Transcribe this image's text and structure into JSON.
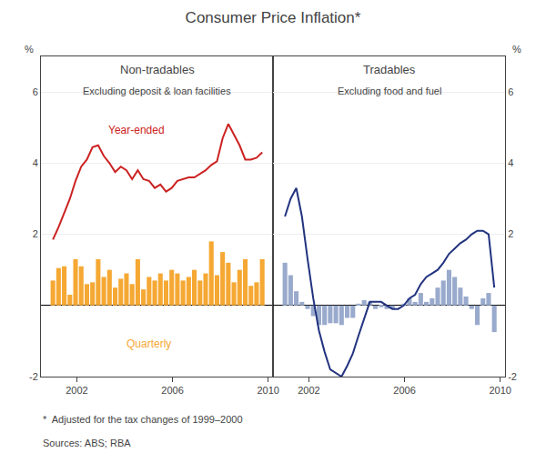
{
  "title": "Consumer Price Inflation*",
  "notes": [
    "*  Adjusted for the tax changes of 1999–2000",
    "Sources: ABS; RBA"
  ],
  "chart_data": [
    {
      "type": "bar",
      "title": "Non-tradables",
      "subtitle": "Excluding deposit & loan facilities",
      "ylabel": "%",
      "x": [
        2001.0,
        2001.236486,
        2001.472973,
        2001.709459,
        2001.945946,
        2002.182432,
        2002.418919,
        2002.655405,
        2002.891892,
        2003.128378,
        2003.364865,
        2003.601351,
        2003.837838,
        2004.074324,
        2004.310811,
        2004.547297,
        2004.783784,
        2005.02027,
        2005.256757,
        2005.493243,
        2005.72973,
        2005.966216,
        2006.202703,
        2006.439189,
        2006.675676,
        2006.912162,
        2007.148649,
        2007.385135,
        2007.621622,
        2007.858108,
        2008.094595,
        2008.331081,
        2008.567568,
        2008.804054,
        2009.040541,
        2009.277027,
        2009.513514,
        2009.75
      ],
      "series": [
        {
          "type": "bar",
          "color": "#F5A833",
          "values": [
            0.7,
            1.05,
            1.1,
            0.3,
            1.3,
            1.1,
            0.6,
            0.65,
            1.3,
            0.8,
            1.0,
            0.5,
            0.75,
            0.9,
            0.6,
            1.3,
            0.45,
            0.8,
            0.7,
            0.9,
            0.7,
            1.0,
            0.9,
            0.7,
            0.8,
            1.0,
            0.7,
            0.9,
            1.8,
            0.85,
            1.5,
            1.2,
            0.65,
            1.0,
            1.3,
            0.55,
            0.65,
            1.3
          ]
        },
        {
          "type": "line",
          "color": "#CC2222",
          "values": [
            1.85,
            2.2,
            2.6,
            3.0,
            3.5,
            3.9,
            4.1,
            4.45,
            4.5,
            4.2,
            4.0,
            3.75,
            3.9,
            3.8,
            3.55,
            3.8,
            3.55,
            3.5,
            3.3,
            3.4,
            3.2,
            3.3,
            3.5,
            3.55,
            3.6,
            3.6,
            3.7,
            3.8,
            3.95,
            4.05,
            4.7,
            5.1,
            4.8,
            4.5,
            4.1,
            4.1,
            4.15,
            4.3
          ]
        }
      ],
      "annotations": [
        {
          "text": "Year-ended",
          "x": 2004.5,
          "y": 4.7,
          "color": "#CC2222"
        },
        {
          "text": "Quarterly",
          "x": 2005.0,
          "y": -1.3,
          "color": "#F5A833"
        }
      ],
      "xlim": [
        2000.5,
        2010.2
      ],
      "xticks": [
        2002,
        2006,
        2010
      ],
      "ylim": [
        -2,
        7
      ],
      "yticks": [
        -2,
        {
          "value": 0,
          "label": null
        },
        2,
        4,
        6
      ],
      "grid": true
    },
    {
      "type": "bar",
      "title": "Tradables",
      "subtitle": "Excluding food and fuel",
      "ylabel": "%",
      "x": [
        2001.0,
        2001.236486,
        2001.472973,
        2001.709459,
        2001.945946,
        2002.182432,
        2002.418919,
        2002.655405,
        2002.891892,
        2003.128378,
        2003.364865,
        2003.601351,
        2003.837838,
        2004.074324,
        2004.310811,
        2004.547297,
        2004.783784,
        2005.02027,
        2005.256757,
        2005.493243,
        2005.72973,
        2005.966216,
        2006.202703,
        2006.439189,
        2006.675676,
        2006.912162,
        2007.148649,
        2007.385135,
        2007.621622,
        2007.858108,
        2008.094595,
        2008.331081,
        2008.567568,
        2008.804054,
        2009.040541,
        2009.277027,
        2009.513514,
        2009.75
      ],
      "series": [
        {
          "type": "bar",
          "color": "#99AACC",
          "values": [
            1.2,
            0.85,
            0.4,
            0.1,
            -0.1,
            -0.3,
            -0.55,
            -0.55,
            -0.5,
            -0.5,
            -0.55,
            -0.35,
            -0.35,
            0.05,
            0.15,
            0.1,
            -0.1,
            -0.05,
            -0.1,
            -0.1,
            0.0,
            0.05,
            0.2,
            0.1,
            0.35,
            0.1,
            0.2,
            0.5,
            0.7,
            1.0,
            0.8,
            0.5,
            0.25,
            -0.1,
            -0.55,
            0.2,
            0.35,
            -0.75
          ]
        },
        {
          "type": "line",
          "color": "#22337F",
          "values": [
            2.5,
            3.0,
            3.3,
            2.5,
            1.3,
            0.2,
            -0.7,
            -1.3,
            -1.8,
            -1.9,
            -2.0,
            -1.7,
            -1.35,
            -0.85,
            -0.35,
            0.1,
            0.1,
            0.1,
            0.0,
            -0.1,
            -0.1,
            0.0,
            0.2,
            0.3,
            0.6,
            0.8,
            0.9,
            1.0,
            1.2,
            1.45,
            1.6,
            1.75,
            1.85,
            2.0,
            2.1,
            2.1,
            2.0,
            0.5
          ]
        }
      ],
      "xlim": [
        2000.5,
        2010.2
      ],
      "xticks": [
        2002,
        2006,
        2010
      ],
      "ylim": [
        -2,
        7
      ],
      "yticks": [
        -2,
        {
          "value": 0,
          "label": null
        },
        2,
        4,
        6
      ],
      "grid": true
    }
  ]
}
